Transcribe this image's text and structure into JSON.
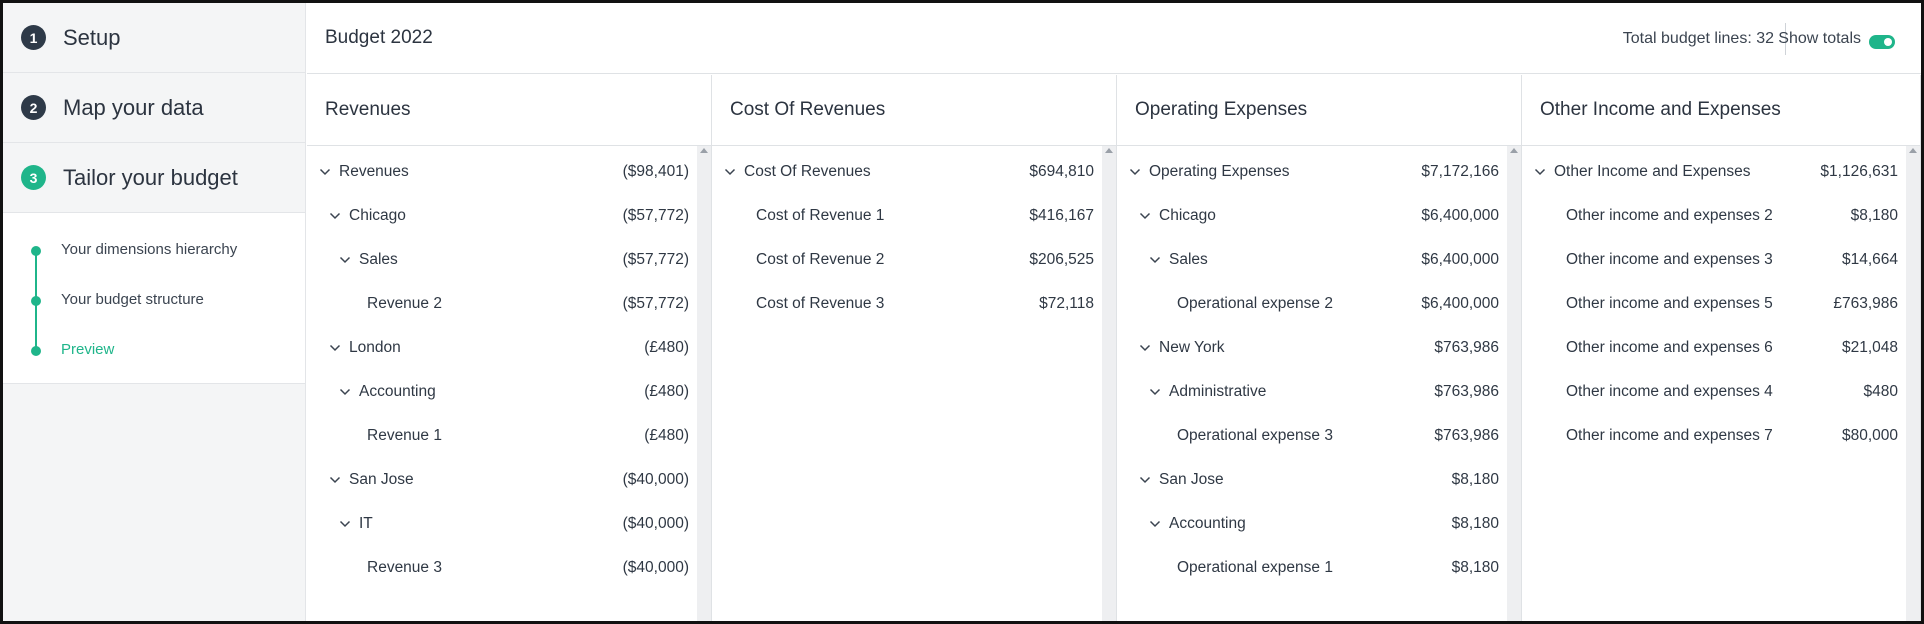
{
  "sidebar": {
    "steps": [
      {
        "num": "1",
        "label": "Setup"
      },
      {
        "num": "2",
        "label": "Map your data"
      },
      {
        "num": "3",
        "label": "Tailor your budget"
      }
    ],
    "substeps": [
      {
        "label": "Your dimensions hierarchy"
      },
      {
        "label": "Your budget structure"
      },
      {
        "label": "Preview"
      }
    ]
  },
  "header": {
    "title": "Budget 2022",
    "total_label": "Total budget lines: 32",
    "show_totals_label": "Show totals",
    "show_totals_on": true
  },
  "colors": {
    "accent": "#1fb58a",
    "step_dark": "#2e3a48"
  },
  "columns": [
    {
      "title": "Revenues",
      "rows": [
        {
          "name": "Revenues",
          "amount": "($98,401)",
          "level": 0,
          "expandable": true
        },
        {
          "name": "Chicago",
          "amount": "($57,772)",
          "level": 1,
          "expandable": true
        },
        {
          "name": "Sales",
          "amount": "($57,772)",
          "level": 2,
          "expandable": true
        },
        {
          "name": "Revenue 2",
          "amount": "($57,772)",
          "level": 3,
          "expandable": false
        },
        {
          "name": "London",
          "amount": "(£480)",
          "level": 1,
          "expandable": true
        },
        {
          "name": "Accounting",
          "amount": "(£480)",
          "level": 2,
          "expandable": true
        },
        {
          "name": "Revenue 1",
          "amount": "(£480)",
          "level": 3,
          "expandable": false
        },
        {
          "name": "San Jose",
          "amount": "($40,000)",
          "level": 1,
          "expandable": true
        },
        {
          "name": "IT",
          "amount": "($40,000)",
          "level": 2,
          "expandable": true
        },
        {
          "name": "Revenue 3",
          "amount": "($40,000)",
          "level": 3,
          "expandable": false
        }
      ]
    },
    {
      "title": "Cost Of Revenues",
      "rows": [
        {
          "name": "Cost Of Revenues",
          "amount": "$694,810",
          "level": 0,
          "expandable": true
        },
        {
          "name": "Cost of Revenue 1",
          "amount": "$416,167",
          "level": 3,
          "expandable": false
        },
        {
          "name": "Cost of Revenue 2",
          "amount": "$206,525",
          "level": 3,
          "expandable": false
        },
        {
          "name": "Cost of Revenue 3",
          "amount": "$72,118",
          "level": 3,
          "expandable": false
        }
      ]
    },
    {
      "title": "Operating Expenses",
      "rows": [
        {
          "name": "Operating Expenses",
          "amount": "$7,172,166",
          "level": 0,
          "expandable": true
        },
        {
          "name": "Chicago",
          "amount": "$6,400,000",
          "level": 1,
          "expandable": true
        },
        {
          "name": "Sales",
          "amount": "$6,400,000",
          "level": 2,
          "expandable": true
        },
        {
          "name": "Operational expense 2",
          "amount": "$6,400,000",
          "level": 3,
          "expandable": false
        },
        {
          "name": "New York",
          "amount": "$763,986",
          "level": 1,
          "expandable": true
        },
        {
          "name": "Administrative",
          "amount": "$763,986",
          "level": 2,
          "expandable": true
        },
        {
          "name": "Operational expense 3",
          "amount": "$763,986",
          "level": 3,
          "expandable": false
        },
        {
          "name": "San Jose",
          "amount": "$8,180",
          "level": 1,
          "expandable": true
        },
        {
          "name": "Accounting",
          "amount": "$8,180",
          "level": 2,
          "expandable": true
        },
        {
          "name": "Operational expense 1",
          "amount": "$8,180",
          "level": 3,
          "expandable": false
        }
      ]
    },
    {
      "title": "Other Income and Expenses",
      "rows": [
        {
          "name": "Other Income and Expenses",
          "amount": "$1,126,631",
          "level": 0,
          "expandable": true
        },
        {
          "name": "Other income and expenses 2",
          "amount": "$8,180",
          "level": 3,
          "expandable": false
        },
        {
          "name": "Other income and expenses 3",
          "amount": "$14,664",
          "level": 3,
          "expandable": false
        },
        {
          "name": "Other income and expenses 5",
          "amount": "£763,986",
          "level": 3,
          "expandable": false
        },
        {
          "name": "Other income and expenses 6",
          "amount": "$21,048",
          "level": 3,
          "expandable": false
        },
        {
          "name": "Other income and expenses 4",
          "amount": "$480",
          "level": 3,
          "expandable": false
        },
        {
          "name": "Other income and expenses 7",
          "amount": "$80,000",
          "level": 3,
          "expandable": false
        }
      ]
    }
  ]
}
